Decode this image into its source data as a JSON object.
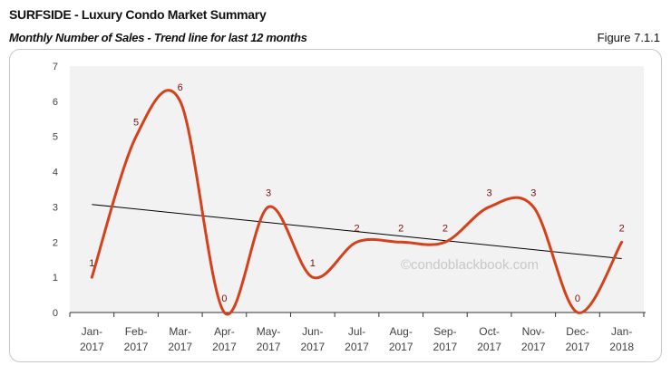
{
  "header": {
    "title": "SURFSIDE - Luxury Condo Market Summary",
    "subtitle": "Monthly Number of Sales - Trend line for last 12 months",
    "figure": "Figure 7.1.1"
  },
  "watermark": "©condoblackbook.com",
  "colors": {
    "line": "#d4411b",
    "label": "#7a1010",
    "trend": "#000000",
    "plot_bg": "#f2f2f2"
  },
  "chart_data": {
    "type": "line",
    "title": "Monthly Number of Sales - Trend line for last 12 months",
    "categories": [
      [
        "Jan-",
        "2017"
      ],
      [
        "Feb-",
        "2017"
      ],
      [
        "Mar-",
        "2017"
      ],
      [
        "Apr-",
        "2017"
      ],
      [
        "May-",
        "2017"
      ],
      [
        "Jun-",
        "2017"
      ],
      [
        "Jul-",
        "2017"
      ],
      [
        "Aug-",
        "2017"
      ],
      [
        "Sep-",
        "2017"
      ],
      [
        "Oct-",
        "2017"
      ],
      [
        "Nov-",
        "2017"
      ],
      [
        "Dec-",
        "2017"
      ],
      [
        "Jan-",
        "2018"
      ]
    ],
    "series": [
      {
        "name": "Number of Sales",
        "values": [
          1,
          5,
          6,
          0,
          3,
          1,
          2,
          2,
          2,
          3,
          3,
          0,
          2
        ],
        "smooth": true,
        "data_labels": true
      }
    ],
    "trendline": {
      "type": "linear",
      "start": 3.07,
      "end": 1.53
    },
    "ylim": [
      0,
      7
    ],
    "yticks": [
      0,
      1,
      2,
      3,
      4,
      5,
      6,
      7
    ],
    "xlabel": "",
    "ylabel": "",
    "grid": false,
    "legend": "none"
  }
}
